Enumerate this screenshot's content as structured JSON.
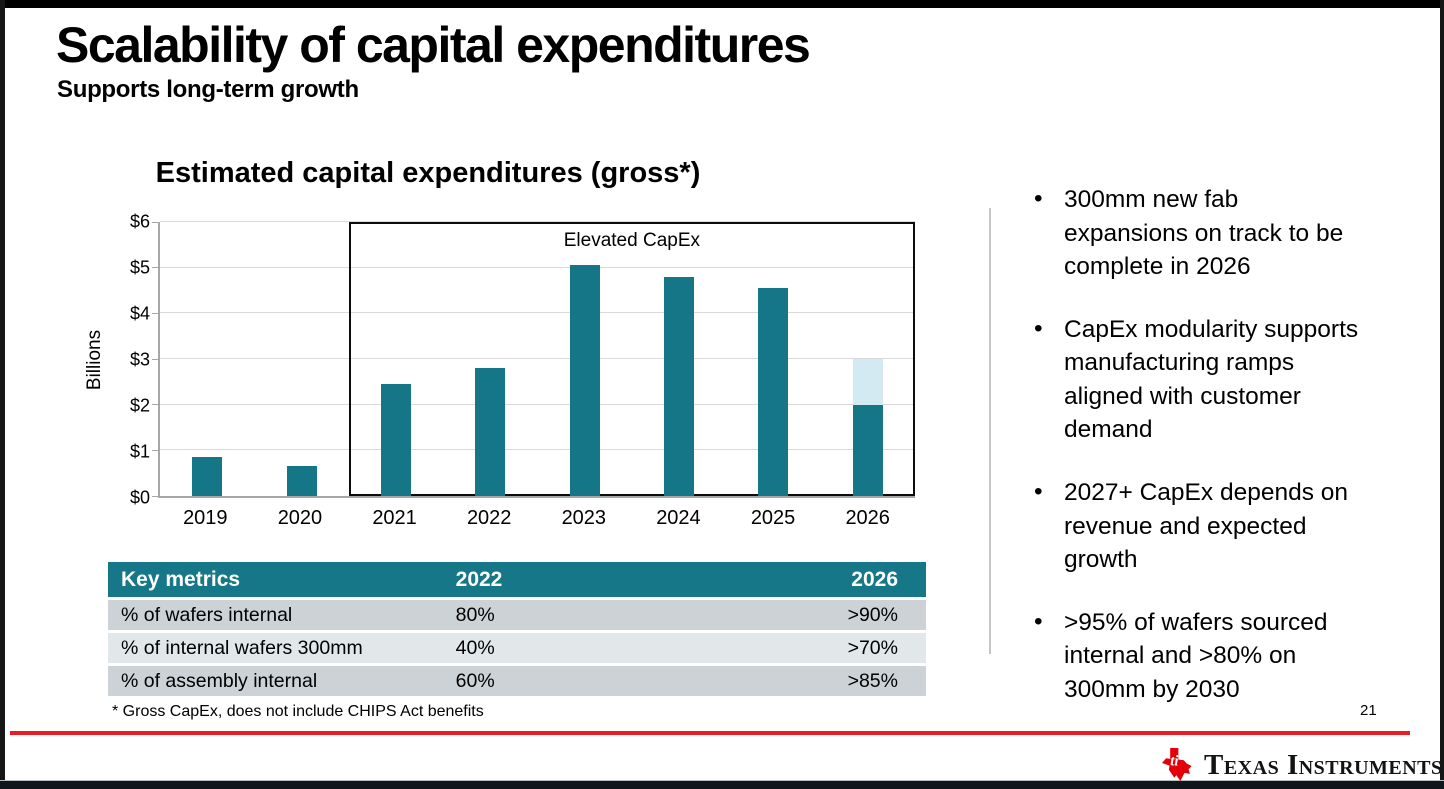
{
  "slide": {
    "title": "Scalability of capital expenditures",
    "subtitle": "Supports long-term growth",
    "footnote": "* Gross CapEx, does not include CHIPS Act benefits",
    "page_number": "21"
  },
  "chart_data": {
    "type": "bar",
    "title": "Estimated capital expenditures (gross*)",
    "xlabel": "",
    "ylabel": "Billions",
    "ylim": [
      0,
      6
    ],
    "ytick_labels": [
      "$0",
      "$1",
      "$2",
      "$3",
      "$4",
      "$5",
      "$6"
    ],
    "grid": "horizontal",
    "legend": "none",
    "categories": [
      "2019",
      "2020",
      "2021",
      "2022",
      "2023",
      "2024",
      "2025",
      "2026"
    ],
    "series": [
      {
        "name": "capex-solid",
        "color": "#147687",
        "values": [
          0.85,
          0.65,
          2.45,
          2.8,
          5.05,
          4.8,
          4.55,
          2.0
        ]
      },
      {
        "name": "capex-light-upper-range",
        "color": "#d4eaf3",
        "values": [
          0,
          0,
          0,
          0,
          0,
          0,
          0,
          1.0
        ]
      }
    ],
    "annotation_box": {
      "label": "Elevated CapEx",
      "from_category": "2021",
      "to_category": "2026"
    }
  },
  "table": {
    "headers": [
      "Key metrics",
      "2022",
      "2026"
    ],
    "rows": [
      [
        "% of wafers internal",
        "80%",
        ">90%"
      ],
      [
        "% of internal wafers 300mm",
        "40%",
        ">70%"
      ],
      [
        "% of assembly internal",
        "60%",
        ">85%"
      ]
    ]
  },
  "bullets": [
    "300mm new fab expansions on track to be complete in 2026",
    "CapEx modularity supports manufacturing ramps aligned with customer demand",
    "2027+ CapEx depends on revenue and expected growth",
    ">95% of wafers sourced internal and >80% on 300mm by 2030"
  ],
  "footer": {
    "logo_mark": "texas-state-icon",
    "logo_text": "Texas Instruments"
  },
  "colors": {
    "accent_teal": "#157787",
    "bar_teal": "#147687",
    "bar_light": "#d4eaf3",
    "row_gray": "#ccd2d6",
    "row_light": "#e2e8ea",
    "red_line": "#ec1c24",
    "logo_red": "#e30009"
  }
}
